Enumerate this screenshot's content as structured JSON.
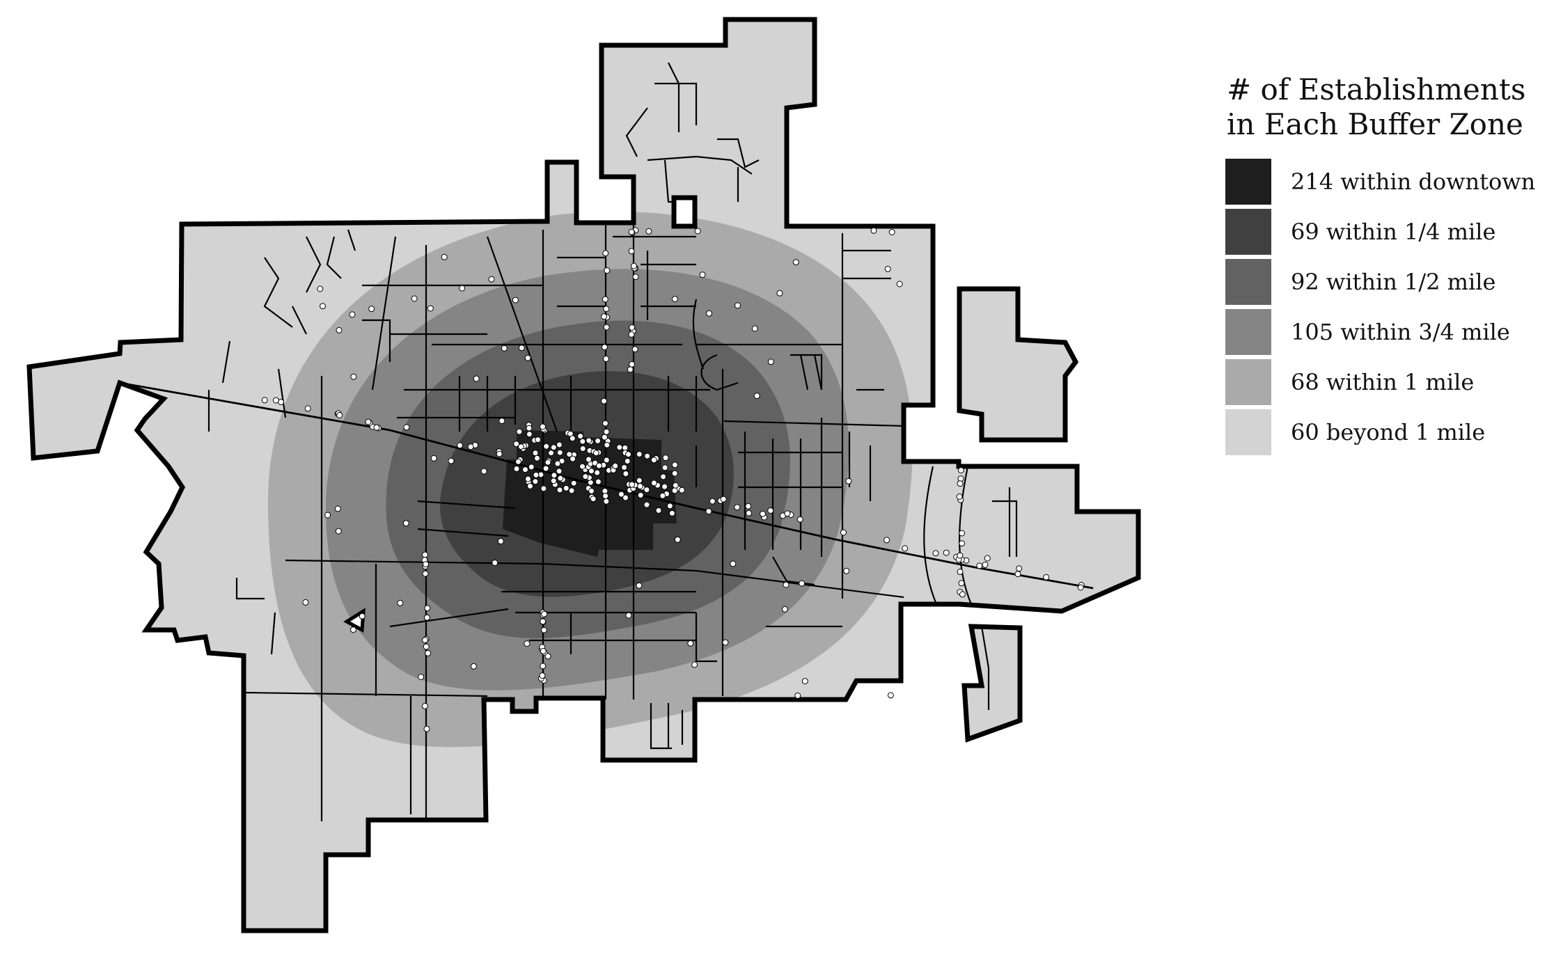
{
  "legend": {
    "title_line1": "# of Establishments",
    "title_line2": "in Each Buffer Zone",
    "items": [
      {
        "label": "214 within downtown",
        "color": "#1e1e1e"
      },
      {
        "label": "69 within 1/4 mile",
        "color": "#404040"
      },
      {
        "label": "92 within 1/2 mile",
        "color": "#626262"
      },
      {
        "label": "105 within 3/4 mile",
        "color": "#858585"
      },
      {
        "label": "68 within 1 mile",
        "color": "#aaaaaa"
      },
      {
        "label": "60 beyond 1 mile",
        "color": "#d3d3d3"
      }
    ]
  },
  "colors": {
    "boundary": "#000000",
    "roads": "#000000",
    "establishment_marker": "#ffffff"
  }
}
